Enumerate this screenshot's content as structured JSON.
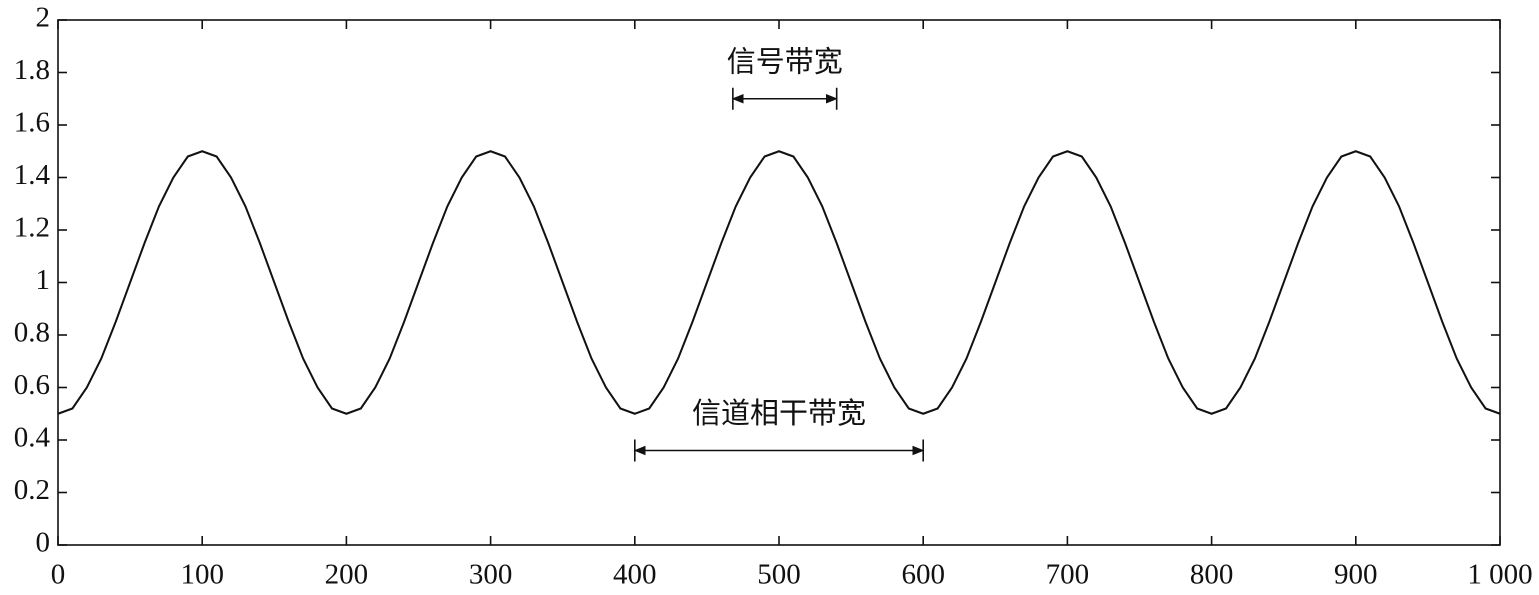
{
  "chart_data": {
    "type": "line",
    "x": [
      0,
      10,
      20,
      30,
      40,
      50,
      60,
      70,
      80,
      90,
      100,
      110,
      120,
      130,
      140,
      150,
      160,
      170,
      180,
      190,
      200,
      210,
      220,
      230,
      240,
      250,
      260,
      270,
      280,
      290,
      300,
      310,
      320,
      330,
      340,
      350,
      360,
      370,
      380,
      390,
      400,
      410,
      420,
      430,
      440,
      450,
      460,
      470,
      480,
      490,
      500,
      510,
      520,
      530,
      540,
      550,
      560,
      570,
      580,
      590,
      600,
      610,
      620,
      630,
      640,
      650,
      660,
      670,
      680,
      690,
      700,
      710,
      720,
      730,
      740,
      750,
      760,
      770,
      780,
      790,
      800,
      810,
      820,
      830,
      840,
      850,
      860,
      870,
      880,
      890,
      900,
      910,
      920,
      930,
      940,
      950,
      960,
      970,
      980,
      990,
      1000
    ],
    "series": [
      {
        "color": "#111111",
        "values": [
          0.5,
          0.52,
          0.6,
          0.71,
          0.85,
          1,
          1.15,
          1.29,
          1.4,
          1.48,
          1.5,
          1.48,
          1.4,
          1.29,
          1.15,
          1,
          0.85,
          0.71,
          0.6,
          0.52,
          0.5,
          0.52,
          0.6,
          0.71,
          0.85,
          1,
          1.15,
          1.29,
          1.4,
          1.48,
          1.5,
          1.48,
          1.4,
          1.29,
          1.15,
          1,
          0.85,
          0.71,
          0.6,
          0.52,
          0.5,
          0.52,
          0.6,
          0.71,
          0.85,
          1,
          1.15,
          1.29,
          1.4,
          1.48,
          1.5,
          1.48,
          1.4,
          1.29,
          1.15,
          1,
          0.85,
          0.71,
          0.6,
          0.52,
          0.5,
          0.52,
          0.6,
          0.71,
          0.85,
          1,
          1.15,
          1.29,
          1.4,
          1.48,
          1.5,
          1.48,
          1.4,
          1.29,
          1.15,
          1,
          0.85,
          0.71,
          0.6,
          0.52,
          0.5,
          0.52,
          0.6,
          0.71,
          0.85,
          1,
          1.15,
          1.29,
          1.4,
          1.48,
          1.5,
          1.48,
          1.4,
          1.29,
          1.15,
          1,
          0.85,
          0.71,
          0.6,
          0.52,
          0.5
        ]
      }
    ],
    "xlim": [
      0,
      1000
    ],
    "xticks": [
      0,
      100,
      200,
      300,
      400,
      500,
      600,
      700,
      800,
      900,
      {
        "value": 1000,
        "label": "1 000"
      }
    ],
    "ylim": [
      0,
      2
    ],
    "yticks": [
      0,
      0.2,
      0.4,
      0.6,
      0.8,
      1,
      1.2,
      1.4,
      1.6,
      1.8,
      2
    ],
    "annotations": [
      {
        "text": "信号带宽",
        "x": [
          468,
          540
        ],
        "y": 1.7
      },
      {
        "text": "信道相干带宽",
        "x": [
          400,
          600
        ],
        "y": 0.36
      }
    ]
  }
}
